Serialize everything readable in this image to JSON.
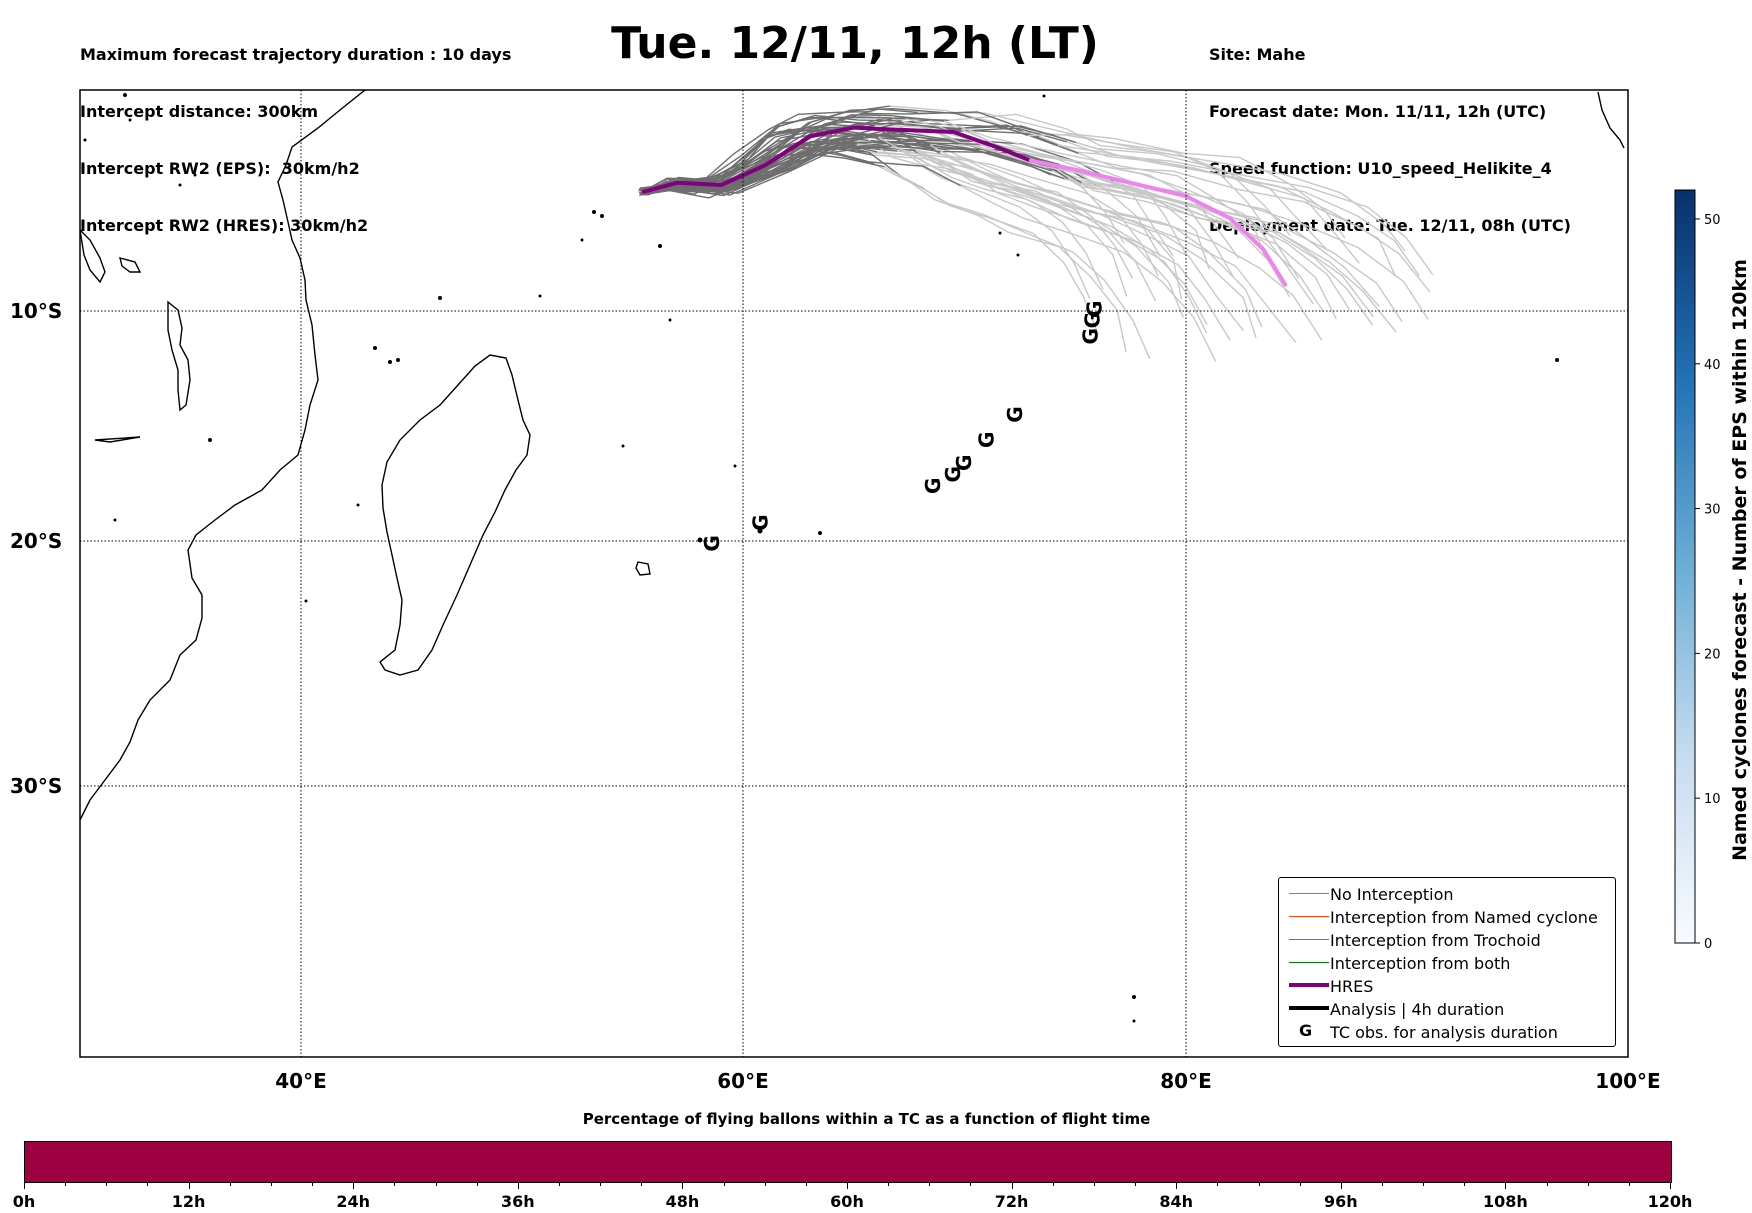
{
  "header": {
    "left_lines": [
      "Maximum forecast trajectory duration : 10 days",
      "Intercept distance: 300km",
      "Intercept RW2 (EPS):  30km/h2",
      "Intercept RW2 (HRES): 30km/h2"
    ],
    "title": "Tue. 12/11, 12h (LT)",
    "right_lines": [
      "Site: Mahe",
      "Forecast date: Mon. 11/11, 12h (UTC)",
      "Speed function: U10_speed_Helikite_4",
      "Deployment date: Tue. 12/11, 08h (UTC)"
    ]
  },
  "map": {
    "lat_labels": [
      "10°S",
      "20°S",
      "30°S"
    ],
    "lon_labels": [
      "40°E",
      "60°E",
      "80°E",
      "100°E"
    ],
    "colors": {
      "eps_no_interception": "#6e6e6e",
      "eps_late": "#c8c8c8",
      "hres_early": "#800080",
      "hres_late": "#ee82ee"
    },
    "hres_track": [
      [
        55.5,
        -4.6
      ],
      [
        57,
        -4.2
      ],
      [
        59,
        -4.3
      ],
      [
        61,
        -3.4
      ],
      [
        63,
        -2.1
      ],
      [
        65,
        -1.7
      ],
      [
        67,
        -1.8
      ],
      [
        69.5,
        -1.9
      ],
      [
        71.5,
        -2.6
      ],
      [
        73,
        -3.2
      ],
      [
        75,
        -3.6
      ],
      [
        77.5,
        -4.2
      ],
      [
        80,
        -4.8
      ],
      [
        82,
        -5.8
      ],
      [
        83.5,
        -7.2
      ],
      [
        84.5,
        -8.8
      ]
    ],
    "tc_obs_label": "G",
    "tc_obs_points": [
      [
        58.9,
        -20.1
      ],
      [
        61.1,
        -19.2
      ],
      [
        68.9,
        -17.6
      ],
      [
        69.8,
        -17.1
      ],
      [
        70.3,
        -16.6
      ],
      [
        71.3,
        -15.6
      ],
      [
        72.6,
        -14.5
      ],
      [
        76.0,
        -11.1
      ],
      [
        76.1,
        -10.4
      ],
      [
        76.2,
        -9.9
      ]
    ]
  },
  "colorbar": {
    "label": "Named cyclones forecast - Number of EPS within 120km",
    "ticks": [
      "0",
      "10",
      "20",
      "30",
      "40",
      "50"
    ],
    "tick_values": [
      0,
      10,
      20,
      30,
      40,
      50
    ],
    "max": 52,
    "color_low": "#f7fbff",
    "color_high": "#08306b"
  },
  "legend": {
    "items": [
      {
        "label": "No Interception",
        "color": "#808080",
        "width": 1
      },
      {
        "label": "Interception from Named cyclone",
        "color": "#ff4500",
        "width": 1
      },
      {
        "label": "Interception from Trochoid",
        "color": "#808000",
        "width": 1
      },
      {
        "label": "Interception from both",
        "color": "#008000",
        "width": 1
      },
      {
        "label": "HRES",
        "color": "#800080",
        "width": 3
      },
      {
        "label": "Analysis | 4h duration",
        "color": "#000000",
        "width": 3
      },
      {
        "label": "TC obs. for analysis duration",
        "glyph": "G"
      }
    ]
  },
  "percentage_bar": {
    "title": "Percentage of flying ballons within a TC as a function of flight time",
    "color": "#9e0142",
    "ticks": [
      "0h",
      "12h",
      "24h",
      "36h",
      "48h",
      "60h",
      "72h",
      "84h",
      "96h",
      "108h",
      "120h"
    ]
  }
}
